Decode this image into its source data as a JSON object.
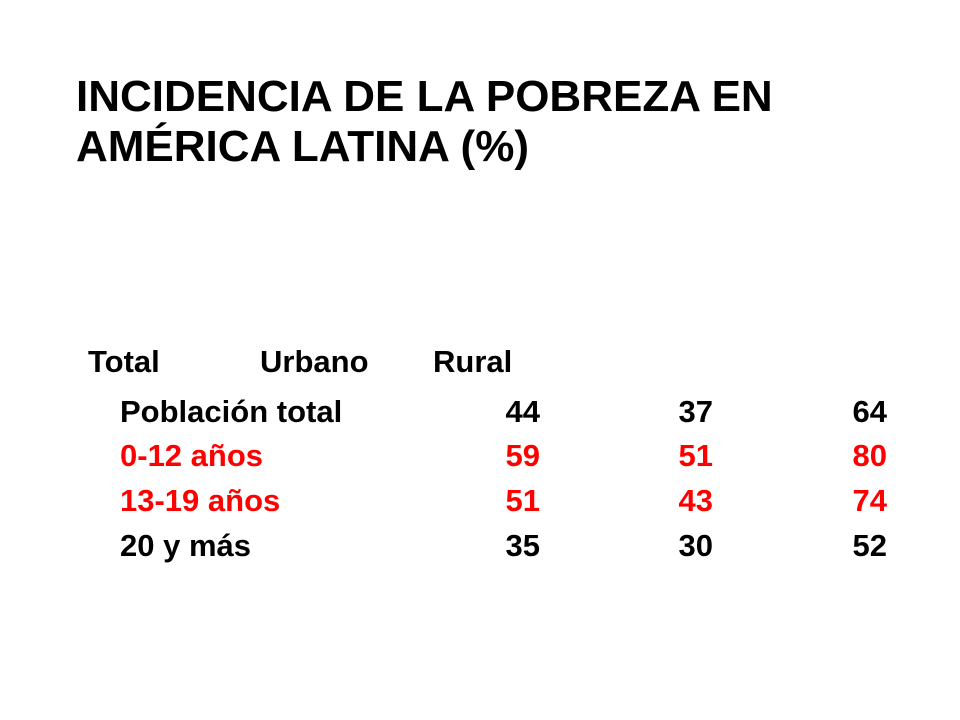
{
  "slide": {
    "title_line1": "INCIDENCIA DE LA POBREZA EN",
    "title_line2": "AMÉRICA LATINA (%)",
    "headers": [
      "Total",
      "Urbano",
      "Rural"
    ],
    "rows": [
      {
        "label": "Población total",
        "total": "44",
        "urbano": "37",
        "rural": "64",
        "color": "#000000"
      },
      {
        "label": "0-12 años",
        "total": "59",
        "urbano": "51",
        "rural": "80",
        "color": "#ff0000"
      },
      {
        "label": "13-19 años",
        "total": "51",
        "urbano": "43",
        "rural": "74",
        "color": "#ff0000"
      },
      {
        "label": "20 y más",
        "total": "35",
        "urbano": "30",
        "rural": "52",
        "color": "#000000"
      }
    ]
  }
}
